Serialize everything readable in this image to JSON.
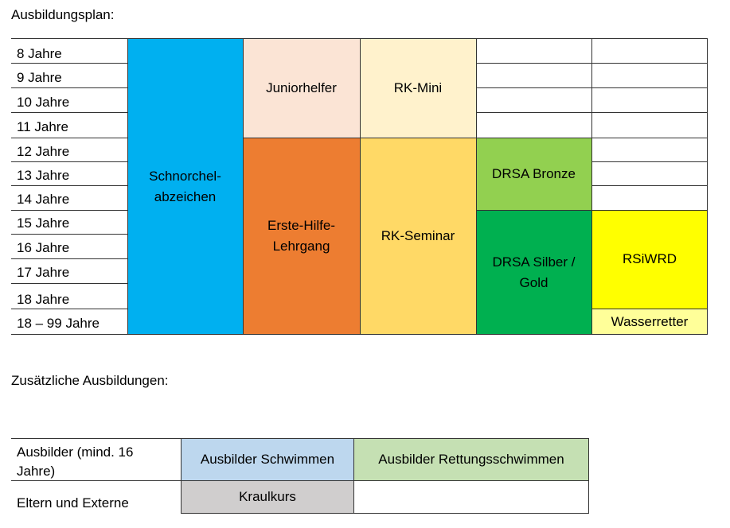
{
  "plan_heading": "Ausbildungsplan:",
  "ages": [
    "8 Jahre",
    "9 Jahre",
    "10 Jahre",
    "11 Jahre",
    "12 Jahre",
    "13 Jahre",
    "14 Jahre",
    "15 Jahre",
    "16 Jahre",
    "17 Jahre",
    "18 Jahre",
    "18 – 99 Jahre"
  ],
  "programs": {
    "schnorchel": "Schnorchel-\nabzeichen",
    "juniorhelfer": "Juniorhelfer",
    "rk_mini": "RK-Mini",
    "erste_hilfe": "Erste-Hilfe-\nLehrgang",
    "rk_seminar": "RK-Seminar",
    "drsa_bronze": "DRSA Bronze",
    "drsa_silber_gold": "DRSA Silber /\nGold",
    "rsiwrd": "RSiWRD",
    "wasserretter": "Wasserretter"
  },
  "colors": {
    "schnorchel": "#00b0f0",
    "juniorhelfer": "#fbe4d5",
    "rk_mini": "#fff2cc",
    "erste_hilfe": "#ed7d31",
    "rk_seminar": "#ffd966",
    "drsa_bronze": "#92d050",
    "drsa_silber_gold": "#00b050",
    "rsiwrd": "#ffff00",
    "wasserretter": "#ffff99",
    "ausbilder_schwimmen": "#bdd7ee",
    "ausbilder_rettung": "#c5e0b3",
    "kraulkurs": "#d0cece"
  },
  "extra_heading": "Zusätzliche Ausbildungen:",
  "extra": {
    "row1_label": "Ausbilder (mind. 16\nJahre)",
    "row2_label": "Eltern und Externe",
    "ausbilder_schwimmen": "Ausbilder Schwimmen",
    "ausbilder_rettungsschwimmen": "Ausbilder Rettungsschwimmen",
    "kraulkurs": "Kraulkurs"
  }
}
